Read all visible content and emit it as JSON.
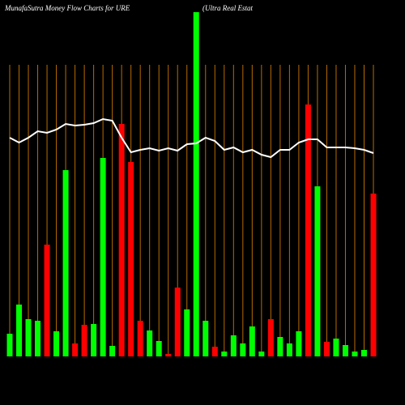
{
  "chart_data": {
    "type": "bar",
    "title": "MunafaSutra  Money Flow  Charts for URE",
    "subtitle": "(Ultra  Real Estat",
    "ylim": [
      0,
      425
    ],
    "guide_color": "#b86b00",
    "series": [
      {
        "name": "Money Flow",
        "type": "bar",
        "values": [
          28,
          64,
          46,
          44,
          138,
          31,
          230,
          16,
          39,
          40,
          245,
          13,
          287,
          240,
          44,
          32,
          19,
          3,
          85,
          58,
          425,
          44,
          12,
          6,
          26,
          16,
          37,
          6,
          46,
          24,
          16,
          31,
          311,
          210,
          18,
          22,
          14,
          6,
          8,
          201
        ],
        "colors": [
          "#00ff00",
          "#00ff00",
          "#00ff00",
          "#00ff00",
          "#ff0000",
          "#00ff00",
          "#00ff00",
          "#ff0000",
          "#ff0000",
          "#00ff00",
          "#00ff00",
          "#00ff00",
          "#ff0000",
          "#ff0000",
          "#ff0000",
          "#00ff00",
          "#00ff00",
          "#ff0000",
          "#ff0000",
          "#00ff00",
          "#00ff00",
          "#00ff00",
          "#ff0000",
          "#00ff00",
          "#00ff00",
          "#00ff00",
          "#00ff00",
          "#00ff00",
          "#ff0000",
          "#00ff00",
          "#00ff00",
          "#00ff00",
          "#ff0000",
          "#00ff00",
          "#ff0000",
          "#00ff00",
          "#00ff00",
          "#00ff00",
          "#00ff00",
          "#ff0000"
        ]
      },
      {
        "name": "Price",
        "type": "line",
        "color": "#ffffff",
        "values": [
          270,
          264,
          270,
          278,
          276,
          280,
          287,
          285,
          286,
          288,
          293,
          291,
          270,
          252,
          255,
          257,
          254,
          257,
          254,
          262,
          263,
          270,
          266,
          255,
          258,
          252,
          255,
          249,
          246,
          255,
          255,
          264,
          268,
          268,
          258,
          258,
          258,
          257,
          255,
          251
        ]
      }
    ]
  }
}
